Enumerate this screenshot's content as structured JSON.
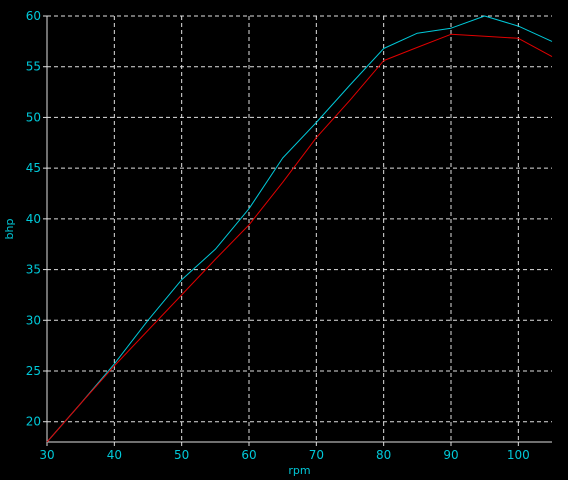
{
  "chart_data": {
    "type": "line",
    "title": "",
    "xlabel": "rpm",
    "ylabel": "bhp",
    "xlim": [
      30,
      105
    ],
    "ylim": [
      18,
      60
    ],
    "x_ticks": [
      30,
      40,
      50,
      60,
      70,
      80,
      90,
      100
    ],
    "y_ticks": [
      20,
      25,
      30,
      35,
      40,
      45,
      50,
      55,
      60
    ],
    "grid": true,
    "legend": "none",
    "series": [
      {
        "color": "#00c8d8",
        "x": [
          30,
          35,
          40,
          45,
          50,
          55,
          60,
          65,
          70,
          75,
          80,
          85,
          90,
          95,
          100,
          105
        ],
        "y": [
          18,
          21.8,
          25.7,
          30,
          34,
          37,
          41,
          46,
          49.5,
          53.2,
          56.8,
          58.3,
          58.8,
          60,
          59,
          57.5
        ]
      },
      {
        "color": "#e00000",
        "x": [
          30,
          35,
          40,
          45,
          50,
          55,
          60,
          65,
          70,
          75,
          80,
          85,
          90,
          95,
          100,
          105
        ],
        "y": [
          18,
          21.8,
          25.5,
          29,
          32.5,
          36,
          39.4,
          43.6,
          48,
          51.7,
          55.6,
          56.9,
          58.2,
          58,
          57.8,
          56
        ]
      }
    ],
    "colors": {
      "background": "#000000",
      "grid": "#e0e0e0",
      "axis": "#e0e0e0",
      "tick_text": "#00c8d8",
      "title_text": "#00c8d8"
    }
  }
}
